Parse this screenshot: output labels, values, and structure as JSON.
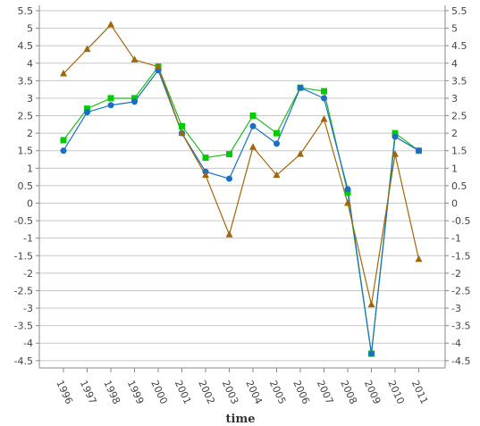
{
  "chart_data": {
    "type": "line",
    "title": "",
    "xlabel": "time",
    "ylabel": "",
    "categories": [
      "1996",
      "1997",
      "1998",
      "1999",
      "2000",
      "2001",
      "2002",
      "2003",
      "2004",
      "2005",
      "2006",
      "2007",
      "2008",
      "2009",
      "2010",
      "2011"
    ],
    "ylim": [
      -4.75,
      5.5
    ],
    "yticks": [
      5.5,
      5,
      4.5,
      4,
      3.5,
      3,
      2.5,
      2,
      1.5,
      1,
      0.5,
      0,
      -0.5,
      -1,
      -1.5,
      -2,
      -2.5,
      -3,
      -3.5,
      -4,
      -4.5
    ],
    "ytick_labels": [
      "5.5",
      "5",
      "4.5",
      "4",
      "3.5",
      "3",
      "2.5",
      "2",
      "1.5",
      "1",
      "0.5",
      "0",
      "-0.5",
      "-1",
      "-1.5",
      "-2",
      "-2.5",
      "-3",
      "-3.5",
      "-4",
      "-4.5"
    ],
    "grid": true,
    "series": [
      {
        "color": "#00cc00",
        "line_color": "#22bb22",
        "marker": "square",
        "values": [
          1.8,
          2.7,
          3.0,
          3.0,
          3.9,
          2.2,
          1.3,
          1.4,
          2.5,
          2.0,
          3.3,
          3.2,
          0.3,
          -4.3,
          2.0,
          1.5
        ]
      },
      {
        "color": "#1a6fc4",
        "line_color": "#1a6fc4",
        "marker": "circle",
        "values": [
          1.5,
          2.6,
          2.8,
          2.9,
          3.8,
          2.0,
          0.9,
          0.7,
          2.2,
          1.7,
          3.3,
          3.0,
          0.4,
          -4.3,
          1.9,
          1.5
        ]
      },
      {
        "color": "#a0660a",
        "line_color": "#a0660a",
        "marker": "triangle",
        "values": [
          3.7,
          4.4,
          5.1,
          4.1,
          3.9,
          2.0,
          0.8,
          -0.9,
          1.6,
          0.8,
          1.4,
          2.4,
          0.0,
          -2.9,
          1.4,
          -1.6
        ]
      }
    ]
  }
}
